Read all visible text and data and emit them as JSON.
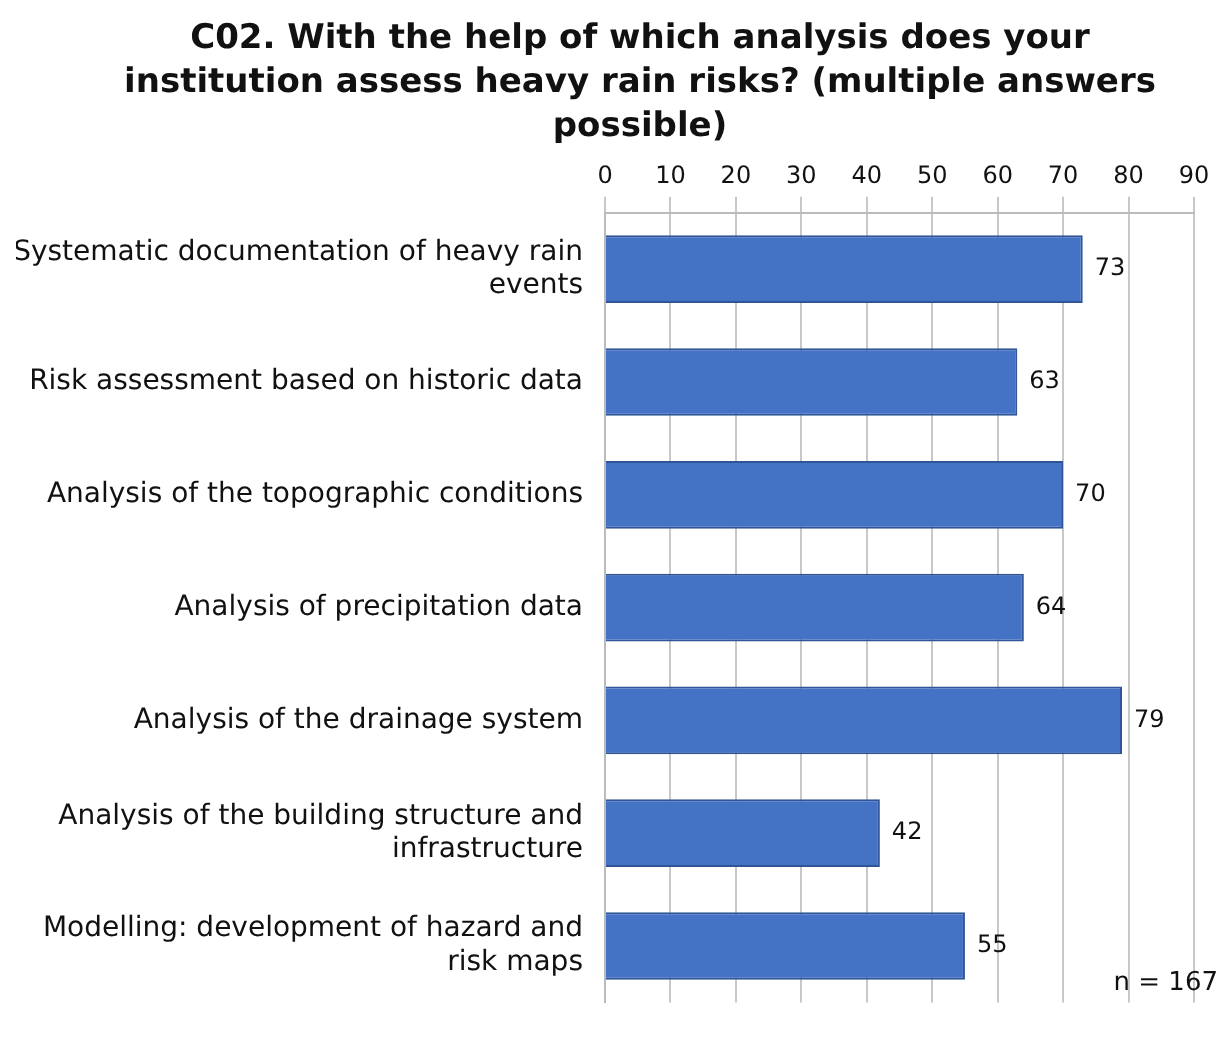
{
  "chart_data": {
    "type": "bar",
    "orientation": "horizontal",
    "title": "C02. With the help of which analysis does your institution assess heavy rain risks? (multiple answers possible)",
    "categories": [
      "Systematic documentation of heavy rain events",
      "Risk assessment based on historic data",
      "Analysis of the topographic conditions",
      "Analysis of precipitation data",
      "Analysis of the drainage system",
      "Analysis of the building structure and infrastructure",
      "Modelling: development of hazard and risk maps"
    ],
    "values": [
      73,
      63,
      70,
      64,
      79,
      42,
      55
    ],
    "color": "#4472c4",
    "xlim": [
      0,
      90
    ],
    "xticks": [
      0,
      10,
      20,
      30,
      40,
      50,
      60,
      70,
      80,
      90
    ],
    "grid": "x",
    "data_labels": true,
    "legend": false,
    "annotations": [
      "n = 167"
    ]
  }
}
